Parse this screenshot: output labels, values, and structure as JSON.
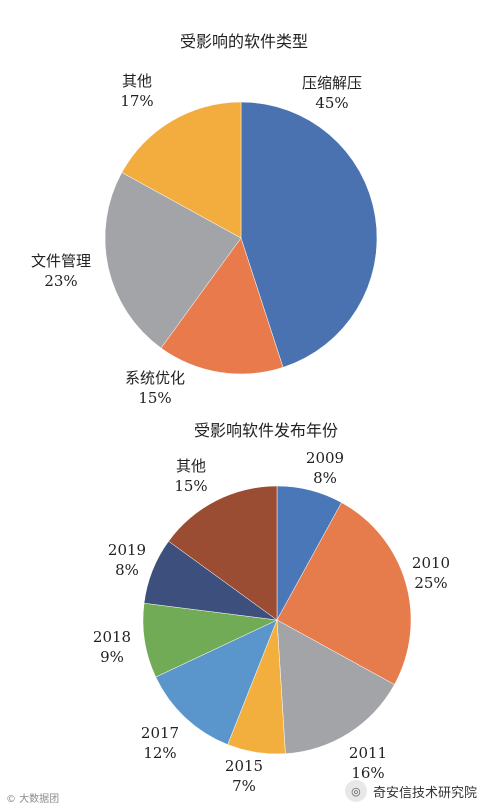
{
  "chart_data": [
    {
      "type": "pie",
      "title": "受影响的软件类型",
      "slices": [
        {
          "label": "压缩解压",
          "pct_label": "45%",
          "value": 45,
          "color": "#4a72b0"
        },
        {
          "label": "系统优化",
          "pct_label": "15%",
          "value": 15,
          "color": "#e97a4c"
        },
        {
          "label": "文件管理",
          "pct_label": "23%",
          "value": 23,
          "color": "#a3a4a7"
        },
        {
          "label": "其他",
          "pct_label": "17%",
          "value": 17,
          "color": "#f3ad3f"
        }
      ],
      "start": "12 o'clock",
      "direction": "clockwise"
    },
    {
      "type": "pie",
      "title": "受影响软件发布年份",
      "slices": [
        {
          "label": "2009",
          "pct_label": "8%",
          "value": 8,
          "color": "#4a77b8"
        },
        {
          "label": "2010",
          "pct_label": "25%",
          "value": 25,
          "color": "#e67b4b"
        },
        {
          "label": "2011",
          "pct_label": "16%",
          "value": 16,
          "color": "#a3a4a7"
        },
        {
          "label": "2015",
          "pct_label": "7%",
          "value": 7,
          "color": "#f3af3d"
        },
        {
          "label": "2017",
          "pct_label": "12%",
          "value": 12,
          "color": "#5a96cc"
        },
        {
          "label": "2018",
          "pct_label": "9%",
          "value": 9,
          "color": "#71ab55"
        },
        {
          "label": "2019",
          "pct_label": "8%",
          "value": 8,
          "color": "#3d4f7c"
        },
        {
          "label": "其他",
          "pct_label": "15%",
          "value": 15,
          "color": "#9b4d33"
        }
      ],
      "start": "12 o'clock",
      "direction": "clockwise"
    }
  ],
  "watermark": {
    "left_text": "© 大数据团",
    "right_text": "奇安信技术研究院"
  }
}
